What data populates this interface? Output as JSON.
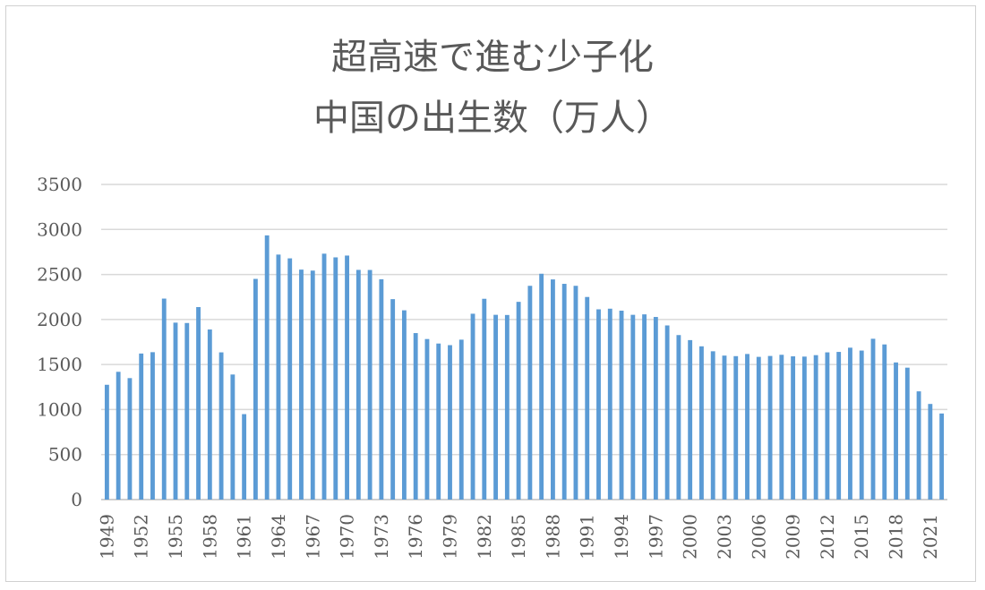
{
  "chart_data": {
    "type": "bar",
    "title_lines": [
      "超高速で進む少子化",
      "中国の出生数（万人）"
    ],
    "xlabel": "",
    "ylabel": "",
    "ylim": [
      0,
      3500
    ],
    "yticks": [
      0,
      500,
      1000,
      1500,
      2000,
      2500,
      3000,
      3500
    ],
    "grid": true,
    "legend": "none",
    "bar_color": "#5b9bd5",
    "grid_color": "#d9d9d9",
    "text_color": "#595959",
    "categories": [
      1949,
      1950,
      1951,
      1952,
      1953,
      1954,
      1955,
      1956,
      1957,
      1958,
      1959,
      1960,
      1961,
      1962,
      1963,
      1964,
      1965,
      1966,
      1967,
      1968,
      1969,
      1970,
      1971,
      1972,
      1973,
      1974,
      1975,
      1976,
      1977,
      1978,
      1979,
      1980,
      1981,
      1982,
      1983,
      1984,
      1985,
      1986,
      1987,
      1988,
      1989,
      1990,
      1991,
      1992,
      1993,
      1994,
      1995,
      1996,
      1997,
      1998,
      1999,
      2000,
      2001,
      2002,
      2003,
      2004,
      2005,
      2006,
      2007,
      2008,
      2009,
      2010,
      2011,
      2012,
      2013,
      2014,
      2015,
      2016,
      2017,
      2018,
      2019,
      2020,
      2021,
      2022
    ],
    "tick_labels": [
      "1949",
      "1952",
      "1955",
      "1958",
      "1961",
      "1964",
      "1967",
      "1970",
      "1973",
      "1976",
      "1979",
      "1982",
      "1985",
      "1988",
      "1991",
      "1994",
      "1997",
      "2000",
      "2003",
      "2006",
      "2009",
      "2012",
      "2015",
      "2018",
      "2021"
    ],
    "values": [
      1275,
      1419,
      1349,
      1622,
      1637,
      2232,
      1965,
      1961,
      2138,
      1889,
      1635,
      1389,
      949,
      2451,
      2934,
      2721,
      2679,
      2554,
      2543,
      2731,
      2690,
      2710,
      2551,
      2550,
      2447,
      2226,
      2102,
      1849,
      1783,
      1733,
      1715,
      1776,
      2064,
      2230,
      2052,
      2050,
      2196,
      2374,
      2508,
      2445,
      2396,
      2374,
      2250,
      2113,
      2120,
      2098,
      2052,
      2057,
      2028,
      1934,
      1827,
      1771,
      1702,
      1647,
      1599,
      1593,
      1617,
      1585,
      1595,
      1608,
      1591,
      1588,
      1604,
      1635,
      1640,
      1687,
      1655,
      1786,
      1723,
      1523,
      1465,
      1202,
      1062,
      956
    ]
  }
}
